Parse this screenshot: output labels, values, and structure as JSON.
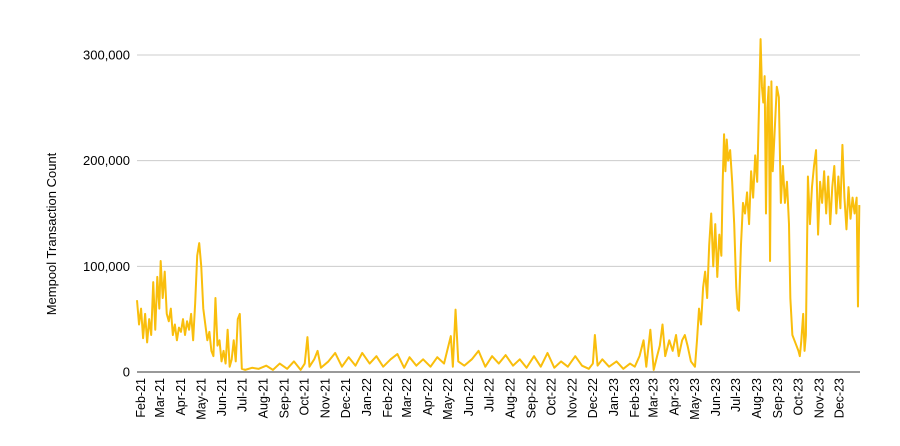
{
  "chart_data": {
    "type": "line",
    "title": "",
    "xlabel": "",
    "ylabel": "Mempool Transaction Count",
    "ylim": [
      0,
      300000
    ],
    "yticks": [
      0,
      100000,
      200000,
      300000
    ],
    "ytick_labels": [
      "0",
      "100,000",
      "200,000",
      "300,000"
    ],
    "grid": "horizontal",
    "legend": "none",
    "line_color": "#f9be0c",
    "x_tick_labels": [
      "Feb-21",
      "Mar-21",
      "Apr-21",
      "May-21",
      "Jun-21",
      "Jul-21",
      "Aug-21",
      "Sep-21",
      "Oct-21",
      "Nov-21",
      "Dec-21",
      "Jan-22",
      "Feb-22",
      "Mar-22",
      "Apr-22",
      "May-22",
      "Jun-22",
      "Jul-22",
      "Aug-22",
      "Sep-22",
      "Oct-22",
      "Nov-22",
      "Dec-22",
      "Jan-23",
      "Feb-23",
      "Mar-23",
      "Apr-23",
      "May-23",
      "Jun-23",
      "Jul-23",
      "Aug-23",
      "Sep-23",
      "Oct-23",
      "Nov-23",
      "Dec-23"
    ],
    "x_tick_dates": [
      "2021-02-01",
      "2021-03-01",
      "2021-04-01",
      "2021-05-01",
      "2021-06-01",
      "2021-07-01",
      "2021-08-01",
      "2021-09-01",
      "2021-10-01",
      "2021-11-01",
      "2021-12-01",
      "2022-01-01",
      "2022-02-01",
      "2022-03-01",
      "2022-04-01",
      "2022-05-01",
      "2022-06-01",
      "2022-07-01",
      "2022-08-01",
      "2022-09-01",
      "2022-10-01",
      "2022-11-01",
      "2022-12-01",
      "2023-01-01",
      "2023-02-01",
      "2023-03-01",
      "2023-04-01",
      "2023-05-01",
      "2023-06-01",
      "2023-07-01",
      "2023-08-01",
      "2023-09-01",
      "2023-10-01",
      "2023-11-01",
      "2023-12-01"
    ],
    "x_range": [
      "2021-01-26",
      "2023-12-31"
    ],
    "series": [
      {
        "points": [
          [
            "2021-01-26",
            68000
          ],
          [
            "2021-01-29",
            45000
          ],
          [
            "2021-02-01",
            60000
          ],
          [
            "2021-02-04",
            32000
          ],
          [
            "2021-02-07",
            55000
          ],
          [
            "2021-02-10",
            28000
          ],
          [
            "2021-02-13",
            50000
          ],
          [
            "2021-02-16",
            35000
          ],
          [
            "2021-02-19",
            85000
          ],
          [
            "2021-02-22",
            40000
          ],
          [
            "2021-02-25",
            90000
          ],
          [
            "2021-02-28",
            60000
          ],
          [
            "2021-03-02",
            105000
          ],
          [
            "2021-03-05",
            70000
          ],
          [
            "2021-03-08",
            95000
          ],
          [
            "2021-03-11",
            55000
          ],
          [
            "2021-03-14",
            48000
          ],
          [
            "2021-03-17",
            60000
          ],
          [
            "2021-03-20",
            35000
          ],
          [
            "2021-03-23",
            45000
          ],
          [
            "2021-03-26",
            30000
          ],
          [
            "2021-03-29",
            42000
          ],
          [
            "2021-04-01",
            38000
          ],
          [
            "2021-04-04",
            50000
          ],
          [
            "2021-04-07",
            35000
          ],
          [
            "2021-04-10",
            48000
          ],
          [
            "2021-04-13",
            40000
          ],
          [
            "2021-04-16",
            55000
          ],
          [
            "2021-04-19",
            30000
          ],
          [
            "2021-04-22",
            65000
          ],
          [
            "2021-04-25",
            110000
          ],
          [
            "2021-04-28",
            122000
          ],
          [
            "2021-05-01",
            100000
          ],
          [
            "2021-05-04",
            60000
          ],
          [
            "2021-05-07",
            45000
          ],
          [
            "2021-05-10",
            30000
          ],
          [
            "2021-05-13",
            38000
          ],
          [
            "2021-05-16",
            20000
          ],
          [
            "2021-05-19",
            15000
          ],
          [
            "2021-05-22",
            70000
          ],
          [
            "2021-05-25",
            25000
          ],
          [
            "2021-05-28",
            30000
          ],
          [
            "2021-05-31",
            10000
          ],
          [
            "2021-06-03",
            20000
          ],
          [
            "2021-06-06",
            8000
          ],
          [
            "2021-06-09",
            40000
          ],
          [
            "2021-06-12",
            5000
          ],
          [
            "2021-06-15",
            12000
          ],
          [
            "2021-06-18",
            30000
          ],
          [
            "2021-06-21",
            10000
          ],
          [
            "2021-06-24",
            50000
          ],
          [
            "2021-06-27",
            55000
          ],
          [
            "2021-06-30",
            3000
          ],
          [
            "2021-07-05",
            2000
          ],
          [
            "2021-07-15",
            4000
          ],
          [
            "2021-07-25",
            3000
          ],
          [
            "2021-08-05",
            6000
          ],
          [
            "2021-08-15",
            2000
          ],
          [
            "2021-08-25",
            8000
          ],
          [
            "2021-09-05",
            3000
          ],
          [
            "2021-09-15",
            10000
          ],
          [
            "2021-09-25",
            2000
          ],
          [
            "2021-10-01",
            8000
          ],
          [
            "2021-10-05",
            33000
          ],
          [
            "2021-10-08",
            5000
          ],
          [
            "2021-10-15",
            12000
          ],
          [
            "2021-10-20",
            20000
          ],
          [
            "2021-10-25",
            4000
          ],
          [
            "2021-11-05",
            10000
          ],
          [
            "2021-11-15",
            18000
          ],
          [
            "2021-11-25",
            5000
          ],
          [
            "2021-12-05",
            14000
          ],
          [
            "2021-12-15",
            6000
          ],
          [
            "2021-12-25",
            18000
          ],
          [
            "2022-01-05",
            8000
          ],
          [
            "2022-01-15",
            15000
          ],
          [
            "2022-01-25",
            5000
          ],
          [
            "2022-02-05",
            12000
          ],
          [
            "2022-02-15",
            17000
          ],
          [
            "2022-02-25",
            4000
          ],
          [
            "2022-03-05",
            14000
          ],
          [
            "2022-03-15",
            6000
          ],
          [
            "2022-03-25",
            12000
          ],
          [
            "2022-04-05",
            5000
          ],
          [
            "2022-04-15",
            14000
          ],
          [
            "2022-04-25",
            8000
          ],
          [
            "2022-05-05",
            34000
          ],
          [
            "2022-05-08",
            5000
          ],
          [
            "2022-05-12",
            59000
          ],
          [
            "2022-05-16",
            10000
          ],
          [
            "2022-05-25",
            6000
          ],
          [
            "2022-06-05",
            12000
          ],
          [
            "2022-06-15",
            20000
          ],
          [
            "2022-06-25",
            5000
          ],
          [
            "2022-07-05",
            15000
          ],
          [
            "2022-07-15",
            8000
          ],
          [
            "2022-07-25",
            16000
          ],
          [
            "2022-08-05",
            6000
          ],
          [
            "2022-08-15",
            12000
          ],
          [
            "2022-08-25",
            4000
          ],
          [
            "2022-09-05",
            15000
          ],
          [
            "2022-09-15",
            5000
          ],
          [
            "2022-09-25",
            18000
          ],
          [
            "2022-10-05",
            4000
          ],
          [
            "2022-10-15",
            10000
          ],
          [
            "2022-10-25",
            5000
          ],
          [
            "2022-11-05",
            15000
          ],
          [
            "2022-11-15",
            6000
          ],
          [
            "2022-11-25",
            3000
          ],
          [
            "2022-12-01",
            8000
          ],
          [
            "2022-12-04",
            35000
          ],
          [
            "2022-12-08",
            6000
          ],
          [
            "2022-12-15",
            12000
          ],
          [
            "2022-12-25",
            5000
          ],
          [
            "2023-01-05",
            10000
          ],
          [
            "2023-01-15",
            3000
          ],
          [
            "2023-01-25",
            8000
          ],
          [
            "2023-02-01",
            5000
          ],
          [
            "2023-02-08",
            15000
          ],
          [
            "2023-02-14",
            30000
          ],
          [
            "2023-02-18",
            5000
          ],
          [
            "2023-02-24",
            40000
          ],
          [
            "2023-03-01",
            2000
          ],
          [
            "2023-03-06",
            15000
          ],
          [
            "2023-03-10",
            25000
          ],
          [
            "2023-03-14",
            45000
          ],
          [
            "2023-03-18",
            15000
          ],
          [
            "2023-03-24",
            30000
          ],
          [
            "2023-03-29",
            20000
          ],
          [
            "2023-04-03",
            35000
          ],
          [
            "2023-04-07",
            15000
          ],
          [
            "2023-04-12",
            30000
          ],
          [
            "2023-04-16",
            35000
          ],
          [
            "2023-04-20",
            25000
          ],
          [
            "2023-04-25",
            10000
          ],
          [
            "2023-05-01",
            5000
          ],
          [
            "2023-05-04",
            30000
          ],
          [
            "2023-05-07",
            60000
          ],
          [
            "2023-05-10",
            45000
          ],
          [
            "2023-05-13",
            80000
          ],
          [
            "2023-05-16",
            95000
          ],
          [
            "2023-05-19",
            70000
          ],
          [
            "2023-05-22",
            120000
          ],
          [
            "2023-05-25",
            150000
          ],
          [
            "2023-05-28",
            100000
          ],
          [
            "2023-05-31",
            140000
          ],
          [
            "2023-06-03",
            90000
          ],
          [
            "2023-06-06",
            130000
          ],
          [
            "2023-06-09",
            110000
          ],
          [
            "2023-06-11",
            180000
          ],
          [
            "2023-06-13",
            225000
          ],
          [
            "2023-06-15",
            190000
          ],
          [
            "2023-06-17",
            220000
          ],
          [
            "2023-06-19",
            200000
          ],
          [
            "2023-06-22",
            210000
          ],
          [
            "2023-06-25",
            180000
          ],
          [
            "2023-06-28",
            140000
          ],
          [
            "2023-07-01",
            80000
          ],
          [
            "2023-07-03",
            60000
          ],
          [
            "2023-07-05",
            58000
          ],
          [
            "2023-07-08",
            120000
          ],
          [
            "2023-07-11",
            160000
          ],
          [
            "2023-07-14",
            150000
          ],
          [
            "2023-07-17",
            170000
          ],
          [
            "2023-07-20",
            140000
          ],
          [
            "2023-07-23",
            190000
          ],
          [
            "2023-07-26",
            165000
          ],
          [
            "2023-07-29",
            205000
          ],
          [
            "2023-08-01",
            180000
          ],
          [
            "2023-08-04",
            260000
          ],
          [
            "2023-08-06",
            315000
          ],
          [
            "2023-08-08",
            270000
          ],
          [
            "2023-08-10",
            255000
          ],
          [
            "2023-08-12",
            280000
          ],
          [
            "2023-08-14",
            150000
          ],
          [
            "2023-08-16",
            250000
          ],
          [
            "2023-08-18",
            270000
          ],
          [
            "2023-08-20",
            105000
          ],
          [
            "2023-08-22",
            275000
          ],
          [
            "2023-08-24",
            190000
          ],
          [
            "2023-08-27",
            230000
          ],
          [
            "2023-08-30",
            270000
          ],
          [
            "2023-09-02",
            260000
          ],
          [
            "2023-09-05",
            160000
          ],
          [
            "2023-09-08",
            195000
          ],
          [
            "2023-09-11",
            160000
          ],
          [
            "2023-09-14",
            180000
          ],
          [
            "2023-09-17",
            140000
          ],
          [
            "2023-09-19",
            70000
          ],
          [
            "2023-09-22",
            35000
          ],
          [
            "2023-09-25",
            30000
          ],
          [
            "2023-09-28",
            25000
          ],
          [
            "2023-10-01",
            20000
          ],
          [
            "2023-10-03",
            15000
          ],
          [
            "2023-10-05",
            28000
          ],
          [
            "2023-10-08",
            55000
          ],
          [
            "2023-10-10",
            20000
          ],
          [
            "2023-10-12",
            35000
          ],
          [
            "2023-10-15",
            185000
          ],
          [
            "2023-10-18",
            140000
          ],
          [
            "2023-10-21",
            175000
          ],
          [
            "2023-10-24",
            195000
          ],
          [
            "2023-10-27",
            210000
          ],
          [
            "2023-10-30",
            130000
          ],
          [
            "2023-11-02",
            180000
          ],
          [
            "2023-11-05",
            160000
          ],
          [
            "2023-11-08",
            190000
          ],
          [
            "2023-11-11",
            150000
          ],
          [
            "2023-11-14",
            185000
          ],
          [
            "2023-11-17",
            140000
          ],
          [
            "2023-11-20",
            175000
          ],
          [
            "2023-11-23",
            195000
          ],
          [
            "2023-11-26",
            150000
          ],
          [
            "2023-11-29",
            185000
          ],
          [
            "2023-12-02",
            155000
          ],
          [
            "2023-12-05",
            215000
          ],
          [
            "2023-12-08",
            165000
          ],
          [
            "2023-12-11",
            135000
          ],
          [
            "2023-12-14",
            175000
          ],
          [
            "2023-12-17",
            145000
          ],
          [
            "2023-12-20",
            165000
          ],
          [
            "2023-12-23",
            150000
          ],
          [
            "2023-12-26",
            165000
          ],
          [
            "2023-12-28",
            62000
          ],
          [
            "2023-12-30",
            158000
          ]
        ]
      }
    ]
  }
}
